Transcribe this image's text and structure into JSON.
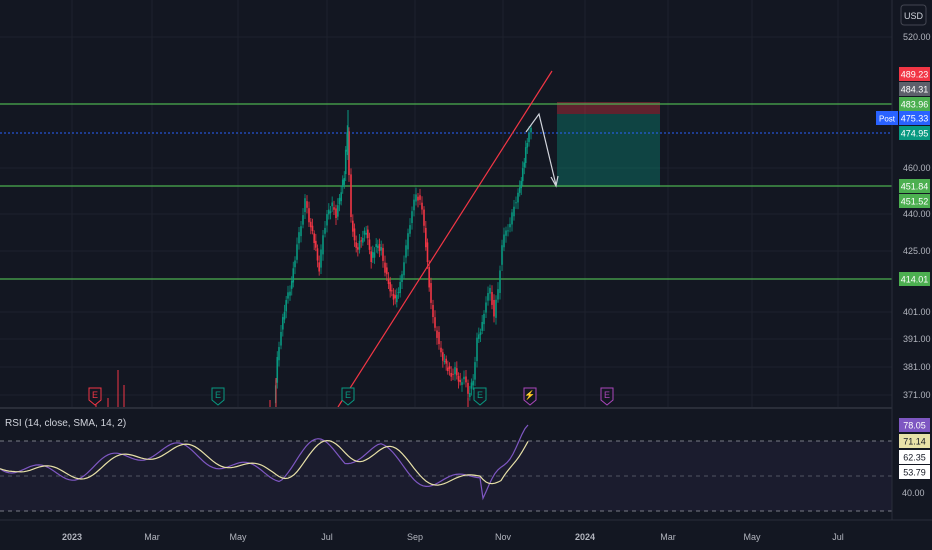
{
  "currency_button": "USD",
  "colors": {
    "background": "#131722",
    "up": "#089981",
    "down": "#f23645",
    "level_line": "#4caf50",
    "trend_line": "#f23645",
    "dotted_price": "#2962ff",
    "rsi_line": "#7e57c2",
    "rsi_ma": "#e8e1a8",
    "rsi_band": "#7e57c2"
  },
  "main_chart": {
    "price_scale": [
      "520.00",
      "460.00",
      "440.00",
      "425.00",
      "414.01",
      "401.00",
      "391.00",
      "381.00",
      "371.00"
    ],
    "level_lines": [
      483.96,
      451.84,
      414.01
    ],
    "price_badges": [
      {
        "value": "489.23",
        "bg": "#f23645"
      },
      {
        "value": "484.31",
        "bg": "#5d606b"
      },
      {
        "value": "483.96",
        "bg": "#4caf50"
      },
      {
        "value": "475.33",
        "bg": "#2962ff",
        "tag": "Post"
      },
      {
        "value": "474.95",
        "bg": "#089981"
      },
      {
        "value": "451.84",
        "bg": "#4caf50"
      },
      {
        "value": "451.52",
        "bg": "#4caf50"
      },
      {
        "value": "414.01",
        "bg": "#4caf50"
      }
    ],
    "event_markers": [
      {
        "label": "E",
        "color": "#f23645"
      },
      {
        "label": "E",
        "color": "#089981"
      },
      {
        "label": "E",
        "color": "#089981"
      },
      {
        "label": "E",
        "color": "#089981"
      },
      {
        "label": "⚡",
        "color": "#ab47bc"
      },
      {
        "label": "E",
        "color": "#ab47bc"
      }
    ],
    "position": {
      "entry": 483.96,
      "stop": 489.23,
      "target": 451.84
    }
  },
  "rsi": {
    "title": "RSI (14, close, SMA, 14, 2)",
    "scale": [
      "40.00"
    ],
    "badges": [
      {
        "value": "78.05",
        "bg": "#7e57c2",
        "fg": "#ffffff"
      },
      {
        "value": "71.14",
        "bg": "#e8e1a8",
        "fg": "#131722"
      },
      {
        "value": "62.35",
        "bg": "#ffffff",
        "fg": "#131722"
      },
      {
        "value": "53.79",
        "bg": "#ffffff",
        "fg": "#131722"
      }
    ]
  },
  "time_axis": [
    "2023",
    "Mar",
    "May",
    "Jul",
    "Sep",
    "Nov",
    "2024",
    "Mar",
    "May",
    "Jul"
  ]
}
